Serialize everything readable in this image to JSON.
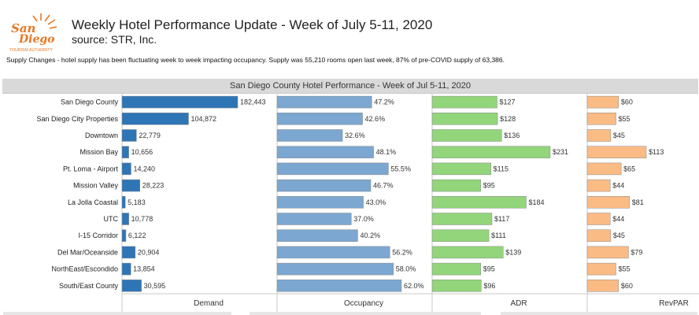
{
  "header": {
    "title": "Weekly Hotel Performance Update - Week of July 5-11, 2020",
    "subtitle": "source: STR, Inc.",
    "note": "Supply Changes - hotel supply has been fluctuating week to week impacting occupancy. Supply was 55,210 rooms open last week, 87% of pre-COVID supply of 63,386."
  },
  "logo": {
    "text_line1": "San",
    "text_line2": "Diego",
    "tagline": "TOURISM AUTHORITY",
    "color": "#e87722"
  },
  "chart_data": {
    "type": "bar",
    "orientation": "horizontal",
    "title": "San Diego County Hotel Performance - Week of Jul 5-11, 2020",
    "categories": [
      "San Diego County",
      "San Diego City Properties",
      "Downtown",
      "Mission Bay",
      "Pt. Loma - Airport",
      "Mission Valley",
      "La Jolla Coastal",
      "UTC",
      "I-15 Corridor",
      "Del Mar/Oceanside",
      "NorthEast/Escondido",
      "South/East County"
    ],
    "series": [
      {
        "name": "Demand",
        "color": "#2e75b6",
        "values": [
          182443,
          104872,
          22779,
          10656,
          14240,
          28223,
          5183,
          10778,
          6122,
          20904,
          13854,
          30595
        ],
        "labels": [
          "182,443",
          "104,872",
          "22,779",
          "10,656",
          "14,240",
          "28,223",
          "5,183",
          "10,778",
          "6,122",
          "20,904",
          "13,854",
          "30,595"
        ]
      },
      {
        "name": "Occupancy",
        "color": "#7ba7d0",
        "values": [
          47.2,
          42.6,
          32.6,
          48.1,
          55.5,
          46.7,
          43.0,
          37.0,
          40.2,
          56.2,
          58.0,
          62.0
        ],
        "labels": [
          "47.2%",
          "42.6%",
          "32.6%",
          "48.1%",
          "55.5%",
          "46.7%",
          "43.0%",
          "37.0%",
          "40.2%",
          "56.2%",
          "58.0%",
          "62.0%"
        ]
      },
      {
        "name": "ADR",
        "color": "#92d57a",
        "values": [
          127,
          128,
          136,
          231,
          115,
          95,
          184,
          117,
          111,
          139,
          95,
          96
        ],
        "labels": [
          "$127",
          "$128",
          "$136",
          "$231",
          "$115",
          "$95",
          "$184",
          "$117",
          "$111",
          "$139",
          "$95",
          "$96"
        ]
      },
      {
        "name": "RevPAR",
        "color": "#fbbb85",
        "values": [
          60,
          55,
          45,
          113,
          65,
          44,
          81,
          44,
          45,
          79,
          55,
          60
        ],
        "labels": [
          "$60",
          "$55",
          "$45",
          "$113",
          "$65",
          "$44",
          "$81",
          "$44",
          "$45",
          "$79",
          "$55",
          "$60"
        ]
      }
    ],
    "bar_border_color": "#8a8a8a",
    "panel_divider_color": "#c8c8c8",
    "grid": false,
    "legend": "none"
  }
}
